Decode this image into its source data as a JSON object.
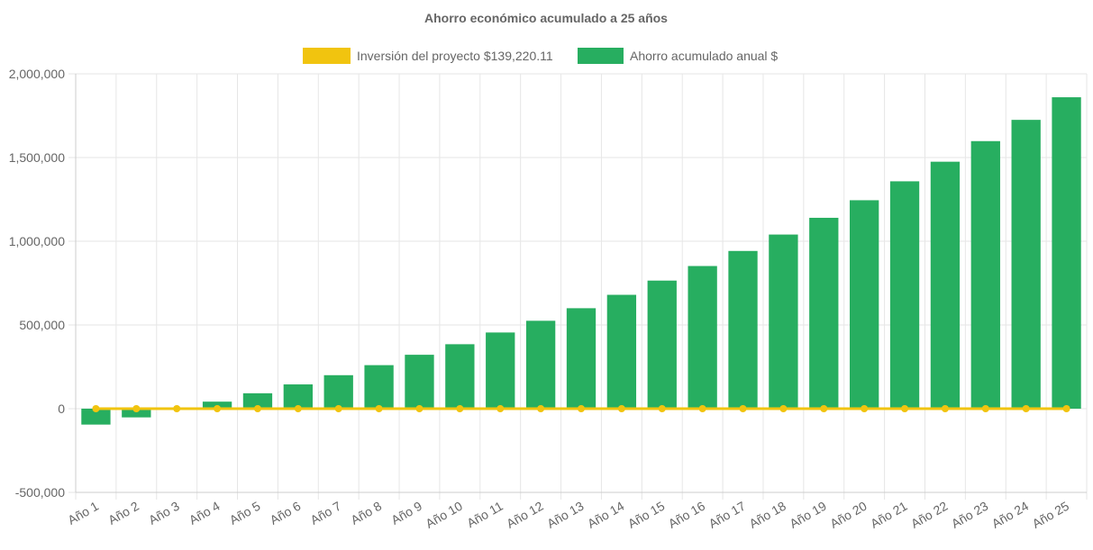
{
  "chart_data": {
    "type": "bar",
    "title": "Ahorro económico acumulado a 25 años",
    "categories": [
      "Año 1",
      "Año 2",
      "Año 3",
      "Año 4",
      "Año 5",
      "Año 6",
      "Año 7",
      "Año 8",
      "Año 9",
      "Año 10",
      "Año 11",
      "Año 12",
      "Año 13",
      "Año 14",
      "Año 15",
      "Año 16",
      "Año 17",
      "Año 18",
      "Año 19",
      "Año 20",
      "Año 21",
      "Año 22",
      "Año 23",
      "Año 24",
      "Año 25"
    ],
    "series": [
      {
        "name": "Inversión del proyecto $139,220.11",
        "type": "line",
        "color": "#f1c40f",
        "values": [
          0,
          0,
          0,
          0,
          0,
          0,
          0,
          0,
          0,
          0,
          0,
          0,
          0,
          0,
          0,
          0,
          0,
          0,
          0,
          0,
          0,
          0,
          0,
          0,
          0
        ]
      },
      {
        "name": "Ahorro acumulado anual $",
        "type": "bar",
        "color": "#27ae60",
        "values": [
          -95000,
          -52000,
          -5000,
          42000,
          92000,
          145000,
          200000,
          260000,
          322000,
          385000,
          455000,
          525000,
          600000,
          680000,
          765000,
          852000,
          942000,
          1040000,
          1140000,
          1245000,
          1358000,
          1475000,
          1598000,
          1725000,
          1860000
        ]
      }
    ],
    "ylim": [
      -500000,
      2000000
    ],
    "yticks": [
      -500000,
      0,
      500000,
      1000000,
      1500000,
      2000000
    ],
    "ytick_labels": [
      "-500,000",
      "0",
      "500,000",
      "1,000,000",
      "1,500,000",
      "2,000,000"
    ],
    "xlabel": "",
    "ylabel": "",
    "grid": true,
    "legend_position": "top"
  }
}
